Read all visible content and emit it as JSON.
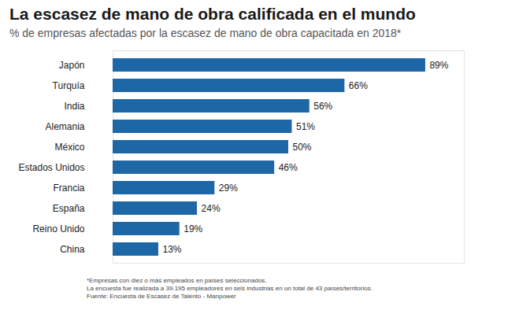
{
  "chart_data": {
    "type": "bar",
    "orientation": "horizontal",
    "title": "La escasez de mano de obra calificada en el mundo",
    "subtitle": "% de empresas afectadas por la escasez de mano de obra capacitada en 2018*",
    "categories": [
      "Japón",
      "Turquía",
      "India",
      "Alemania",
      "México",
      "Estados Unidos",
      "Francia",
      "España",
      "Reino Unido",
      "China"
    ],
    "values": [
      89,
      66,
      56,
      51,
      50,
      46,
      29,
      24,
      19,
      13
    ],
    "value_labels": [
      "89%",
      "66%",
      "56%",
      "51%",
      "50%",
      "46%",
      "29%",
      "24%",
      "19%",
      "13%"
    ],
    "color": "#1d67a6",
    "xlim": [
      0,
      100
    ],
    "grid": false,
    "data_labels": true,
    "tick_labels": "y",
    "footnotes": [
      "*Empresas con diez o más empleados en países seleccionados.",
      "La encuesta fue realizada a 39.195 empleadores en seis industrias en un total de 43 países/territorios.",
      "Fuente: Encuesta de Escasez de Talento - Manpower"
    ]
  }
}
